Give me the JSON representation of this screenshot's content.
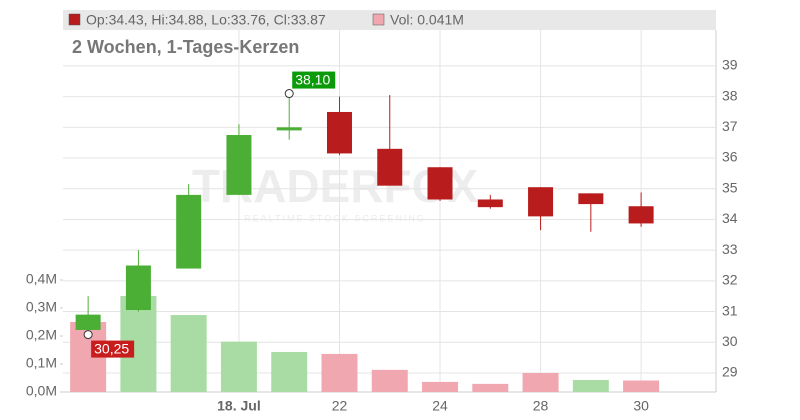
{
  "chart_data": {
    "type": "candlestick",
    "header": "Op:34.43, Hi:34.88, Lo:33.76, Cl:33.87",
    "header_volume": "Vol: 0.041M",
    "subtitle": "2 Wochen, 1-Tages-Kerzen",
    "watermark": "TRADERFOX",
    "watermark_sub": "REALTIME STOCK SCREENING",
    "categories": [
      null,
      null,
      null,
      "18. Jul",
      null,
      "22",
      null,
      "24",
      null,
      "28",
      null,
      "30"
    ],
    "open": [
      30.4,
      31.05,
      32.4,
      34.8,
      36.9,
      37.5,
      36.3,
      35.7,
      34.65,
      35.05,
      34.85,
      34.43
    ],
    "high": [
      31.5,
      33.0,
      35.15,
      37.1,
      38.1,
      38.0,
      38.05,
      35.7,
      34.8,
      35.05,
      34.85,
      34.88
    ],
    "low": [
      30.25,
      31.0,
      32.4,
      34.8,
      36.6,
      36.1,
      35.1,
      34.6,
      34.35,
      33.65,
      33.6,
      33.76
    ],
    "close": [
      30.9,
      32.5,
      34.8,
      36.75,
      37.0,
      36.15,
      35.1,
      34.65,
      34.4,
      34.1,
      34.5,
      33.87
    ],
    "up_color": "#4caf35",
    "down_color": "#b81c1c",
    "volume": [
      0.25,
      0.343,
      0.275,
      0.18,
      0.143,
      0.136,
      0.079,
      0.036,
      0.029,
      0.068,
      0.043,
      0.041
    ],
    "volume_colors": [
      "#f0a7b0",
      "#a9dca5",
      "#a9dca5",
      "#a9dca5",
      "#a9dca5",
      "#f0a7b0",
      "#f0a7b0",
      "#f0a7b0",
      "#f0a7b0",
      "#f0a7b0",
      "#a9dca5",
      "#f0a7b0"
    ],
    "high_label": {
      "value": 38.1,
      "label": "38,10"
    },
    "low_label": {
      "value": 30.25,
      "label": "30,25"
    },
    "ylim": [
      28.38,
      40.17
    ],
    "yticks": [
      29,
      30,
      31,
      32,
      33,
      34,
      35,
      36,
      37,
      38,
      39
    ],
    "y2lim": [
      0,
      1.293
    ],
    "y2ticks": [
      {
        "value": 0,
        "label": "0,0M"
      },
      {
        "value": 0.1,
        "label": "0,1M"
      },
      {
        "value": 0.2,
        "label": "0,2M"
      },
      {
        "value": 0.3,
        "label": "0,3M"
      },
      {
        "value": 0.4,
        "label": "0,4M"
      }
    ],
    "grid": true
  }
}
